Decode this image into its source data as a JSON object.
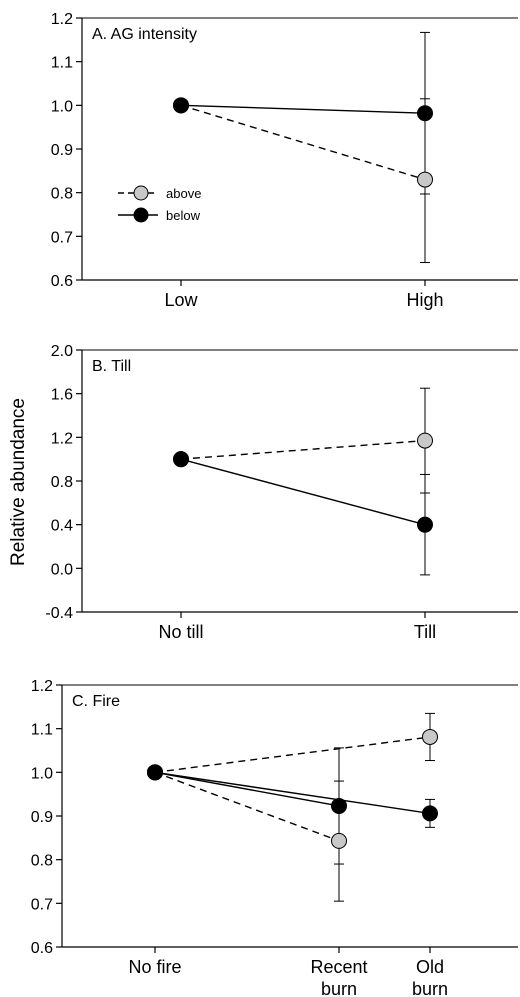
{
  "ylabel": "Relative abundance",
  "colors": {
    "above": "#c8c8c8",
    "below": "#000000",
    "axis": "#000000"
  },
  "chart_data": [
    {
      "type": "line",
      "title": "A.  AG intensity",
      "categories": [
        "Low",
        "High"
      ],
      "category_lines": [
        [
          "Low"
        ],
        [
          "High"
        ]
      ],
      "ylim": [
        0.6,
        1.2
      ],
      "yticks": [
        "0.6",
        "0.7",
        "0.8",
        "0.9",
        "1.0",
        "1.1",
        "1.2"
      ],
      "legend": {
        "position": "left-middle",
        "entries": [
          "above",
          "below"
        ]
      },
      "series": [
        {
          "name": "above",
          "style": "dashed",
          "color": "#c8c8c8",
          "points": [
            {
              "x": 0,
              "y": 1.0
            },
            {
              "x": 1,
              "y": 0.83,
              "err_low": 0.64,
              "err_high": 1.015
            }
          ]
        },
        {
          "name": "below",
          "style": "solid",
          "color": "#000000",
          "points": [
            {
              "x": 0,
              "y": 1.0
            },
            {
              "x": 1,
              "y": 0.982,
              "err_low": 0.797,
              "err_high": 1.167
            }
          ]
        }
      ]
    },
    {
      "type": "line",
      "title": "B.  Till",
      "categories": [
        "No till",
        "Till"
      ],
      "category_lines": [
        [
          "No till"
        ],
        [
          "Till"
        ]
      ],
      "ylim": [
        -0.4,
        2.0
      ],
      "yticks": [
        "-0.4",
        "0.0",
        "0.4",
        "0.8",
        "1.2",
        "1.6",
        "2.0"
      ],
      "series": [
        {
          "name": "above",
          "style": "dashed",
          "color": "#c8c8c8",
          "points": [
            {
              "x": 0,
              "y": 1.0
            },
            {
              "x": 1,
              "y": 1.17,
              "err_low": 0.69,
              "err_high": 1.65
            }
          ]
        },
        {
          "name": "below",
          "style": "solid",
          "color": "#000000",
          "points": [
            {
              "x": 0,
              "y": 1.0
            },
            {
              "x": 1,
              "y": 0.4,
              "err_low": -0.06,
              "err_high": 0.86
            }
          ]
        }
      ]
    },
    {
      "type": "line",
      "title": "C.  Fire",
      "categories": [
        "No fire",
        "Recent burn",
        "Old burn"
      ],
      "category_lines": [
        [
          "No fire"
        ],
        [
          "Recent",
          "burn"
        ],
        [
          "Old",
          "burn"
        ]
      ],
      "ylim": [
        0.6,
        1.2
      ],
      "yticks": [
        "0.6",
        "0.7",
        "0.8",
        "0.9",
        "1.0",
        "1.1",
        "1.2"
      ],
      "series": [
        {
          "name": "above",
          "style": "dashed",
          "color": "#c8c8c8",
          "points": [
            {
              "x": 0,
              "y": 1.0
            },
            {
              "x": 1,
              "y": 0.843,
              "err_low": 0.705,
              "err_high": 0.98
            }
          ]
        },
        {
          "name": "above",
          "style": "dashed",
          "color": "#c8c8c8",
          "points": [
            {
              "x": 0,
              "y": 1.0
            },
            {
              "x": 2,
              "y": 1.081,
              "err_low": 1.027,
              "err_high": 1.135
            }
          ]
        },
        {
          "name": "below",
          "style": "solid",
          "color": "#000000",
          "points": [
            {
              "x": 0,
              "y": 1.0
            },
            {
              "x": 1,
              "y": 0.923,
              "err_low": 0.79,
              "err_high": 1.056
            }
          ]
        },
        {
          "name": "below",
          "style": "solid",
          "color": "#000000",
          "points": [
            {
              "x": 0,
              "y": 1.0
            },
            {
              "x": 2,
              "y": 0.906,
              "err_low": 0.874,
              "err_high": 0.938
            }
          ]
        }
      ]
    }
  ]
}
